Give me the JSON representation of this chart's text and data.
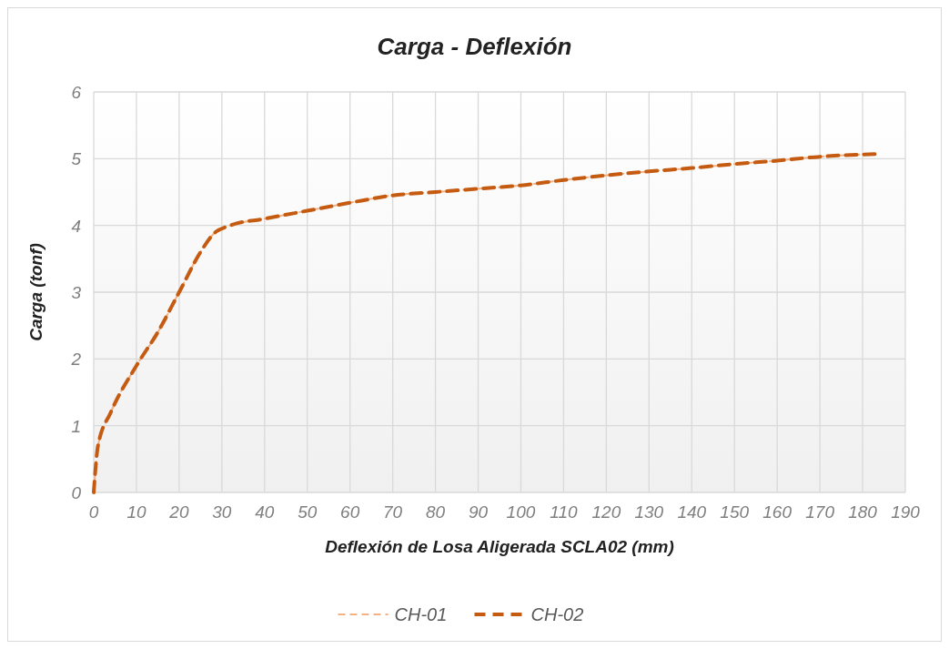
{
  "chart_data": {
    "type": "line",
    "title": "Carga - Deflexión",
    "xlabel": "Deflexión de Losa Aligerada SCLA02 (mm)",
    "ylabel": "Carga (tonf)",
    "xlim": [
      0,
      190
    ],
    "xticks": [
      0,
      10,
      20,
      30,
      40,
      50,
      60,
      70,
      80,
      90,
      100,
      110,
      120,
      130,
      140,
      150,
      160,
      170,
      180,
      190
    ],
    "ylim": [
      0,
      6
    ],
    "yticks": [
      0,
      1,
      2,
      3,
      4,
      5,
      6
    ],
    "grid": true,
    "legend": "bottom",
    "line_style": "dashed",
    "marker": "none",
    "x": [
      0,
      1,
      4,
      10,
      15,
      20,
      25,
      28,
      32,
      40,
      50,
      60,
      70,
      80,
      90,
      100,
      110,
      120,
      130,
      140,
      150,
      160,
      170,
      183
    ],
    "series": [
      {
        "name": "CH-01",
        "color": "#f4b183",
        "values": [
          0,
          0.7,
          1.2,
          1.9,
          2.4,
          3.0,
          3.6,
          3.87,
          4.0,
          4.1,
          4.22,
          4.34,
          4.45,
          4.5,
          4.55,
          4.6,
          4.68,
          4.75,
          4.81,
          4.86,
          4.92,
          4.97,
          5.03,
          5.07
        ]
      },
      {
        "name": "CH-02",
        "color": "#c55a11",
        "values": [
          0,
          0.7,
          1.2,
          1.9,
          2.4,
          3.0,
          3.6,
          3.87,
          4.0,
          4.1,
          4.22,
          4.34,
          4.45,
          4.5,
          4.55,
          4.6,
          4.68,
          4.75,
          4.81,
          4.86,
          4.92,
          4.97,
          5.03,
          5.07
        ]
      }
    ]
  }
}
